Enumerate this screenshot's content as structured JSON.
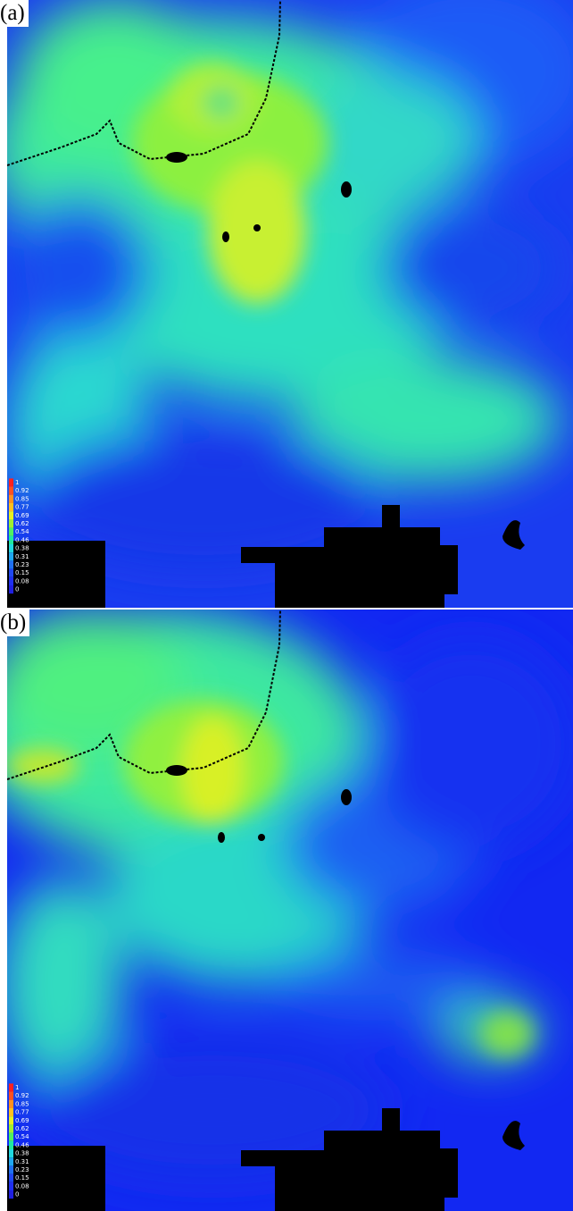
{
  "panels": [
    {
      "label": "(a)"
    },
    {
      "label": "(b)"
    }
  ],
  "legend": {
    "labels": [
      1,
      0.92,
      0.85,
      0.77,
      0.69,
      0.62,
      0.54,
      0.46,
      0.38,
      0.31,
      0.23,
      0.15,
      0.08,
      0
    ]
  }
}
